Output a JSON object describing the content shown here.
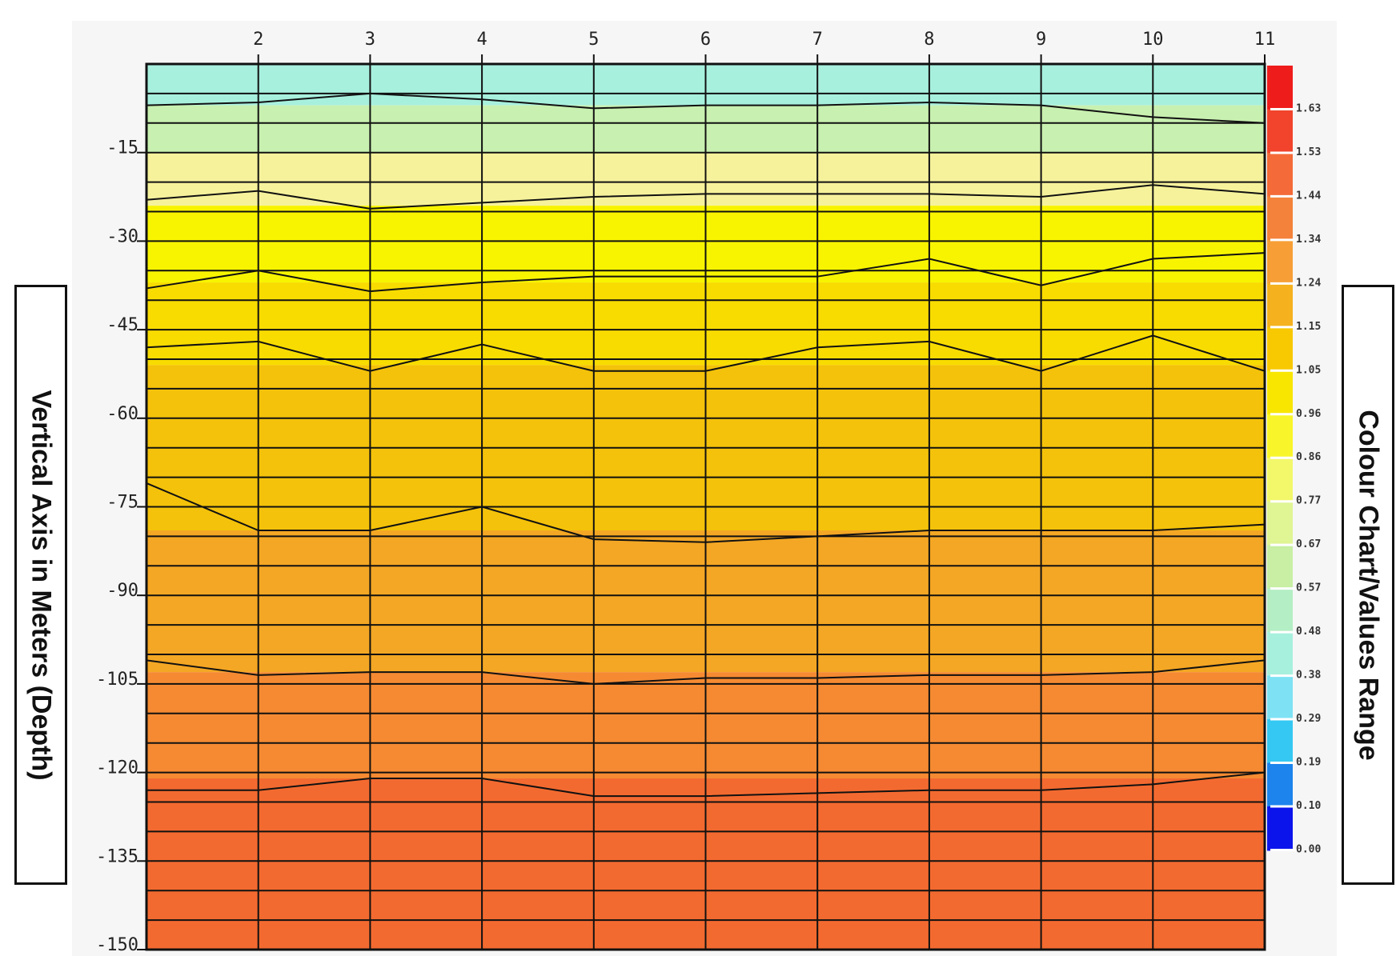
{
  "chart_data": {
    "type": "heatmap",
    "title": "",
    "ylabel": "Vertical Axis in Meters (Depth)",
    "legend_title": "Colour Chart/Values Range",
    "x_ticks": [
      "2",
      "3",
      "4",
      "5",
      "6",
      "7",
      "8",
      "9",
      "10",
      "11"
    ],
    "y_ticks": [
      "-15",
      "-30",
      "-45",
      "-60",
      "-75",
      "-90",
      "-105",
      "-120",
      "-135",
      "-150"
    ],
    "xlim": [
      1,
      11
    ],
    "ylim": [
      -150,
      0
    ],
    "depth_levels": 31,
    "grid": true,
    "legend_placement": "right",
    "colorbar_ticks": [
      "1.63",
      "1.53",
      "1.44",
      "1.34",
      "1.24",
      "1.15",
      "1.05",
      "0.96",
      "0.86",
      "0.77",
      "0.67",
      "0.57",
      "0.48",
      "0.38",
      "0.29",
      "0.19",
      "0.10",
      "0.00"
    ],
    "colorbar_colors": [
      "#ef1c1c",
      "#f2442c",
      "#f46a38",
      "#f4823a",
      "#f79f36",
      "#f5b21e",
      "#f8c800",
      "#f8e600",
      "#f8f62a",
      "#f2f86a",
      "#e0f594",
      "#c8efa4",
      "#b4eec4",
      "#a8f0de",
      "#7ee2f4",
      "#34c8f2",
      "#1c84ec",
      "#0c14ec"
    ],
    "depth_color_bands": [
      {
        "from": 0,
        "to": -7,
        "color": "#a8f0de"
      },
      {
        "from": -7,
        "to": -15,
        "color": "#c8f0b0"
      },
      {
        "from": -15,
        "to": -24,
        "color": "#f6f29c"
      },
      {
        "from": -24,
        "to": -37,
        "color": "#f8f400"
      },
      {
        "from": -37,
        "to": -51,
        "color": "#f8dc00"
      },
      {
        "from": -51,
        "to": -79,
        "color": "#f4c20a"
      },
      {
        "from": -79,
        "to": -103,
        "color": "#f4a724"
      },
      {
        "from": -103,
        "to": -121,
        "color": "#f58a32"
      },
      {
        "from": -121,
        "to": -150,
        "color": "#f36a30"
      }
    ],
    "contours": [
      {
        "x": [
          1,
          2,
          3,
          4,
          5,
          6,
          7,
          8,
          9,
          10,
          11
        ],
        "y": [
          -7,
          -6.5,
          -5,
          -6,
          -7.5,
          -7,
          -7,
          -6.5,
          -7,
          -9,
          -10
        ]
      },
      {
        "x": [
          1,
          2,
          3,
          4,
          5,
          6,
          7,
          8,
          9,
          10,
          11
        ],
        "y": [
          -23,
          -21.5,
          -24.5,
          -23.5,
          -22.5,
          -22,
          -22,
          -22,
          -22.5,
          -20.5,
          -22
        ]
      },
      {
        "x": [
          1,
          2,
          3,
          4,
          5,
          6,
          7,
          8,
          9,
          10,
          11
        ],
        "y": [
          -38,
          -35,
          -38.5,
          -37,
          -36,
          -36,
          -36,
          -33,
          -37.5,
          -33,
          -32
        ]
      },
      {
        "x": [
          1,
          2,
          3,
          4,
          5,
          6,
          7,
          8,
          9,
          10,
          11
        ],
        "y": [
          -48,
          -47,
          -52,
          -47.5,
          -52,
          -52,
          -48,
          -47,
          -52,
          -46,
          -52
        ]
      },
      {
        "x": [
          1,
          2,
          3,
          4,
          5,
          6,
          7,
          8,
          9,
          10,
          11
        ],
        "y": [
          -71,
          -79,
          -79,
          -75,
          -80.5,
          -81,
          -80,
          -79,
          -79,
          -79,
          -78
        ]
      },
      {
        "x": [
          1,
          2,
          3,
          4,
          5,
          6,
          7,
          8,
          9,
          10,
          11
        ],
        "y": [
          -101,
          -103.5,
          -103,
          -103,
          -105,
          -104,
          -104,
          -103.5,
          -103.5,
          -103,
          -101
        ]
      },
      {
        "x": [
          1,
          2,
          3,
          4,
          5,
          6,
          7,
          8,
          9,
          10,
          11
        ],
        "y": [
          -123,
          -123,
          -121,
          -121,
          -124,
          -124,
          -123.5,
          -123,
          -123,
          -122,
          -120
        ]
      }
    ]
  }
}
